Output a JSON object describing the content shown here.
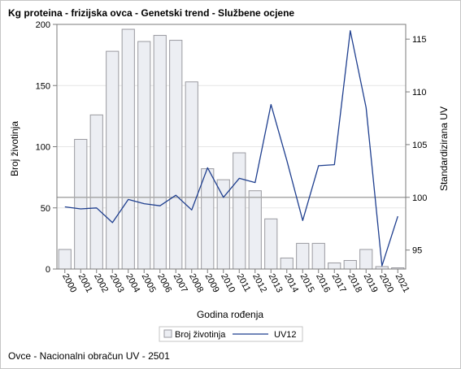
{
  "title": "Kg proteina - frizijska ovca - Genetski trend - Službene ocjene",
  "footnote": "Ovce - Nacionalni obračun UV - 2501",
  "colors": {
    "bar_fill": "#eceef3",
    "bar_stroke": "#9a9aa0",
    "line": "#1f3f8f",
    "reference_line": "#a9a9a9",
    "grid": "#e6e6e6",
    "axis": "#7b7b7b"
  },
  "chart_data": {
    "type": "bar",
    "xlabel": "Godina rođenja",
    "ylabel": "Broj životinja",
    "y2label": "Standardizirana UV",
    "categories": [
      "2000",
      "2001",
      "2002",
      "2003",
      "2004",
      "2005",
      "2006",
      "2007",
      "2008",
      "2009",
      "2010",
      "2011",
      "2012",
      "2013",
      "2014",
      "2015",
      "2016",
      "2017",
      "2018",
      "2019",
      "2020",
      "2021"
    ],
    "ylim": [
      0,
      200
    ],
    "yticks": [
      0,
      50,
      100,
      150,
      200
    ],
    "y2lim": [
      93.2,
      116.4
    ],
    "y2ticks": [
      95,
      100,
      105,
      110,
      115
    ],
    "reference_line_y2": 100,
    "grid": true,
    "legend_position": "bottom",
    "series": [
      {
        "name": "Broj životinja",
        "type": "bar",
        "axis": "left",
        "values": [
          16,
          106,
          126,
          178,
          196,
          186,
          191,
          187,
          153,
          82,
          73,
          95,
          64,
          41,
          9,
          21,
          21,
          5,
          7,
          16,
          2,
          1
        ]
      },
      {
        "name": "UV12",
        "type": "line",
        "axis": "right",
        "values": [
          99.1,
          98.9,
          99.0,
          97.6,
          99.8,
          99.4,
          99.2,
          100.2,
          98.8,
          102.8,
          100.0,
          101.8,
          101.4,
          108.8,
          103.5,
          97.8,
          103.0,
          103.1,
          115.8,
          108.5,
          93.5,
          98.2
        ]
      }
    ]
  }
}
